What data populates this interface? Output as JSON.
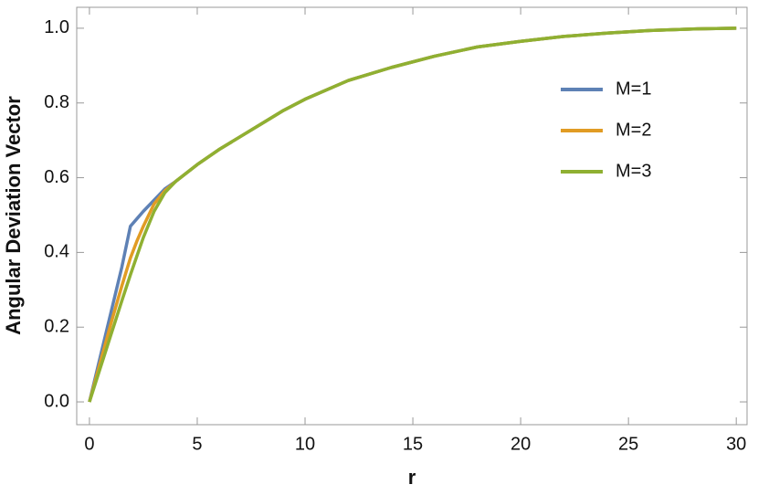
{
  "chart_data": {
    "type": "line",
    "x_label": "r",
    "y_label": "Angular Deviation Vector",
    "x": [
      0,
      0.5,
      1,
      1.5,
      1.9,
      2.2,
      2.5,
      3,
      3.5,
      4,
      5,
      6,
      7,
      8,
      9,
      10,
      12,
      14,
      16,
      18,
      20,
      22,
      24,
      26,
      28,
      30
    ],
    "series": [
      {
        "name": "M=1",
        "color": "#5e81b5",
        "values": [
          0,
          0.12,
          0.24,
          0.36,
          0.47,
          0.49,
          0.51,
          0.54,
          0.57,
          0.59,
          0.635,
          0.675,
          0.71,
          0.745,
          0.78,
          0.81,
          0.86,
          0.895,
          0.925,
          0.95,
          0.965,
          0.978,
          0.987,
          0.994,
          0.998,
          1.0
        ]
      },
      {
        "name": "M=2",
        "color": "#e19c24",
        "values": [
          0,
          0.105,
          0.21,
          0.31,
          0.385,
          0.43,
          0.47,
          0.53,
          0.565,
          0.59,
          0.635,
          0.675,
          0.71,
          0.745,
          0.78,
          0.81,
          0.86,
          0.895,
          0.925,
          0.95,
          0.965,
          0.978,
          0.987,
          0.994,
          0.998,
          1.0
        ]
      },
      {
        "name": "M=3",
        "color": "#8fb032",
        "values": [
          0,
          0.09,
          0.18,
          0.27,
          0.34,
          0.39,
          0.44,
          0.51,
          0.56,
          0.59,
          0.635,
          0.675,
          0.71,
          0.745,
          0.78,
          0.81,
          0.86,
          0.895,
          0.925,
          0.95,
          0.965,
          0.978,
          0.987,
          0.994,
          0.998,
          1.0
        ]
      }
    ],
    "xlim": [
      -0.59,
      30.5
    ],
    "ylim": [
      -0.061,
      1.056
    ],
    "xticks": [
      0,
      5,
      10,
      15,
      20,
      25,
      30
    ],
    "yticks": [
      {
        "value": 0,
        "label": "0.0"
      },
      {
        "value": 0.2,
        "label": "0.2"
      },
      {
        "value": 0.4,
        "label": "0.4"
      },
      {
        "value": 0.6,
        "label": "0.6"
      },
      {
        "value": 0.8,
        "label": "0.8"
      },
      {
        "value": 1,
        "label": "1.0"
      }
    ],
    "legend": "upper-right"
  }
}
